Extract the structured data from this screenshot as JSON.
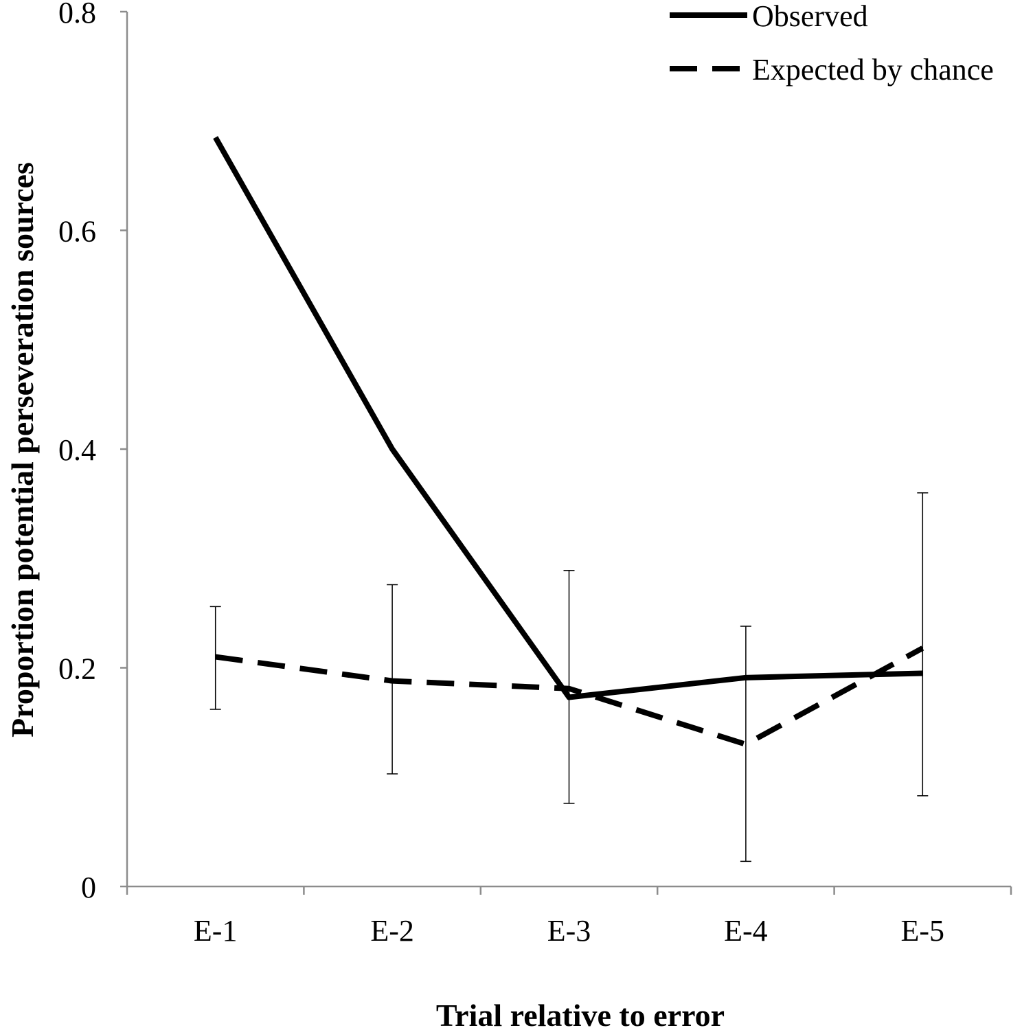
{
  "chart_data": {
    "type": "line",
    "title": "",
    "xlabel": "Trial relative to error",
    "ylabel": "Proportion potential perseveration sources",
    "categories": [
      "E-1",
      "E-2",
      "E-3",
      "E-4",
      "E-5"
    ],
    "ylim": [
      0,
      0.8
    ],
    "yticks": [
      0,
      0.2,
      0.4,
      0.6,
      0.8
    ],
    "ytick_labels": [
      "0",
      "0.2",
      "0.4",
      "0.6",
      "0.8"
    ],
    "grid": false,
    "legend_position": "top-right",
    "series": [
      {
        "name": "Observed",
        "style": "solid",
        "values": [
          0.685,
          0.4,
          0.173,
          0.191,
          0.195
        ]
      },
      {
        "name": "Expected by chance",
        "style": "dashed",
        "values": [
          0.21,
          0.188,
          0.181,
          0.13,
          0.218
        ],
        "error_low": [
          0.162,
          0.103,
          0.076,
          0.023,
          0.083
        ],
        "error_high": [
          0.256,
          0.276,
          0.289,
          0.238,
          0.36
        ]
      }
    ]
  }
}
